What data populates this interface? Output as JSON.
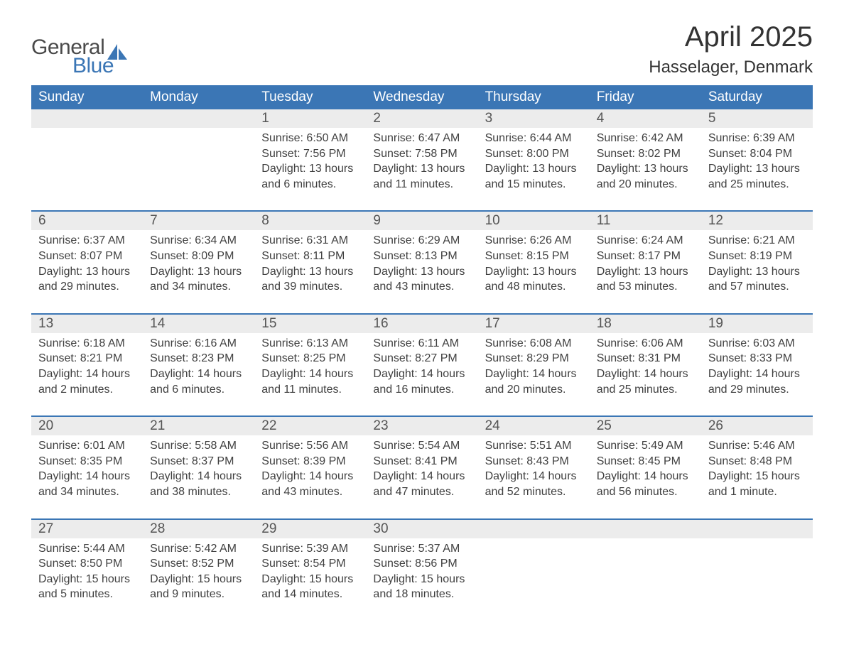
{
  "brand": {
    "line1": "General",
    "line2": "Blue"
  },
  "title": "April 2025",
  "subtitle": "Hasselager, Denmark",
  "colors": {
    "header_bg": "#3b76b5",
    "header_text": "#ffffff",
    "daynum_bg": "#ececec",
    "rule": "#3b76b5",
    "body_text": "#404040",
    "page_bg": "#ffffff",
    "logo_gray": "#4a4a4a",
    "logo_blue": "#3b76b5"
  },
  "layout": {
    "type": "calendar-table",
    "columns": 7,
    "weeks": 5,
    "cell_fontsize": 16,
    "header_fontsize": 19,
    "title_fontsize": 40,
    "subtitle_fontsize": 24
  },
  "weekdays": [
    "Sunday",
    "Monday",
    "Tuesday",
    "Wednesday",
    "Thursday",
    "Friday",
    "Saturday"
  ],
  "weeks": [
    [
      null,
      null,
      {
        "n": "1",
        "sr": "6:50 AM",
        "ss": "7:56 PM",
        "dl": "13 hours and 6 minutes."
      },
      {
        "n": "2",
        "sr": "6:47 AM",
        "ss": "7:58 PM",
        "dl": "13 hours and 11 minutes."
      },
      {
        "n": "3",
        "sr": "6:44 AM",
        "ss": "8:00 PM",
        "dl": "13 hours and 15 minutes."
      },
      {
        "n": "4",
        "sr": "6:42 AM",
        "ss": "8:02 PM",
        "dl": "13 hours and 20 minutes."
      },
      {
        "n": "5",
        "sr": "6:39 AM",
        "ss": "8:04 PM",
        "dl": "13 hours and 25 minutes."
      }
    ],
    [
      {
        "n": "6",
        "sr": "6:37 AM",
        "ss": "8:07 PM",
        "dl": "13 hours and 29 minutes."
      },
      {
        "n": "7",
        "sr": "6:34 AM",
        "ss": "8:09 PM",
        "dl": "13 hours and 34 minutes."
      },
      {
        "n": "8",
        "sr": "6:31 AM",
        "ss": "8:11 PM",
        "dl": "13 hours and 39 minutes."
      },
      {
        "n": "9",
        "sr": "6:29 AM",
        "ss": "8:13 PM",
        "dl": "13 hours and 43 minutes."
      },
      {
        "n": "10",
        "sr": "6:26 AM",
        "ss": "8:15 PM",
        "dl": "13 hours and 48 minutes."
      },
      {
        "n": "11",
        "sr": "6:24 AM",
        "ss": "8:17 PM",
        "dl": "13 hours and 53 minutes."
      },
      {
        "n": "12",
        "sr": "6:21 AM",
        "ss": "8:19 PM",
        "dl": "13 hours and 57 minutes."
      }
    ],
    [
      {
        "n": "13",
        "sr": "6:18 AM",
        "ss": "8:21 PM",
        "dl": "14 hours and 2 minutes."
      },
      {
        "n": "14",
        "sr": "6:16 AM",
        "ss": "8:23 PM",
        "dl": "14 hours and 6 minutes."
      },
      {
        "n": "15",
        "sr": "6:13 AM",
        "ss": "8:25 PM",
        "dl": "14 hours and 11 minutes."
      },
      {
        "n": "16",
        "sr": "6:11 AM",
        "ss": "8:27 PM",
        "dl": "14 hours and 16 minutes."
      },
      {
        "n": "17",
        "sr": "6:08 AM",
        "ss": "8:29 PM",
        "dl": "14 hours and 20 minutes."
      },
      {
        "n": "18",
        "sr": "6:06 AM",
        "ss": "8:31 PM",
        "dl": "14 hours and 25 minutes."
      },
      {
        "n": "19",
        "sr": "6:03 AM",
        "ss": "8:33 PM",
        "dl": "14 hours and 29 minutes."
      }
    ],
    [
      {
        "n": "20",
        "sr": "6:01 AM",
        "ss": "8:35 PM",
        "dl": "14 hours and 34 minutes."
      },
      {
        "n": "21",
        "sr": "5:58 AM",
        "ss": "8:37 PM",
        "dl": "14 hours and 38 minutes."
      },
      {
        "n": "22",
        "sr": "5:56 AM",
        "ss": "8:39 PM",
        "dl": "14 hours and 43 minutes."
      },
      {
        "n": "23",
        "sr": "5:54 AM",
        "ss": "8:41 PM",
        "dl": "14 hours and 47 minutes."
      },
      {
        "n": "24",
        "sr": "5:51 AM",
        "ss": "8:43 PM",
        "dl": "14 hours and 52 minutes."
      },
      {
        "n": "25",
        "sr": "5:49 AM",
        "ss": "8:45 PM",
        "dl": "14 hours and 56 minutes."
      },
      {
        "n": "26",
        "sr": "5:46 AM",
        "ss": "8:48 PM",
        "dl": "15 hours and 1 minute."
      }
    ],
    [
      {
        "n": "27",
        "sr": "5:44 AM",
        "ss": "8:50 PM",
        "dl": "15 hours and 5 minutes."
      },
      {
        "n": "28",
        "sr": "5:42 AM",
        "ss": "8:52 PM",
        "dl": "15 hours and 9 minutes."
      },
      {
        "n": "29",
        "sr": "5:39 AM",
        "ss": "8:54 PM",
        "dl": "15 hours and 14 minutes."
      },
      {
        "n": "30",
        "sr": "5:37 AM",
        "ss": "8:56 PM",
        "dl": "15 hours and 18 minutes."
      },
      null,
      null,
      null
    ]
  ],
  "labels": {
    "sunrise": "Sunrise: ",
    "sunset": "Sunset: ",
    "daylight": "Daylight: "
  }
}
